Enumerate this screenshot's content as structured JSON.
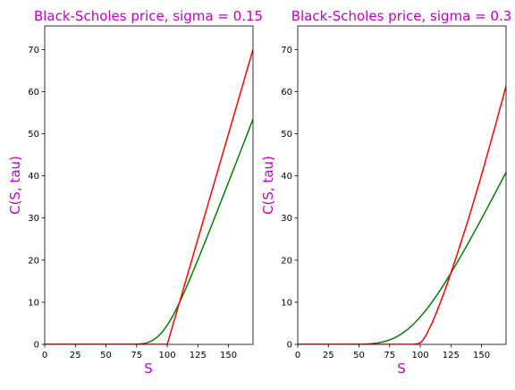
{
  "chart_data": [
    {
      "type": "line",
      "title": "Black-Scholes price, sigma = 0.15",
      "xlabel": "S",
      "ylabel": "C(S, tau)",
      "xlim": [
        0,
        170
      ],
      "ylim": [
        0,
        75.6
      ],
      "xticks": [
        0,
        25,
        50,
        75,
        100,
        125,
        150
      ],
      "yticks": [
        0,
        10,
        20,
        30,
        40,
        50,
        60,
        70
      ],
      "grid": false,
      "legend": "none",
      "series": [
        {
          "color": "#008000",
          "x": [
            0,
            40,
            60,
            70,
            75,
            78,
            80,
            82,
            84,
            86,
            88,
            90,
            92,
            94,
            96,
            98,
            100,
            102,
            104,
            106,
            108,
            110,
            112,
            114,
            116,
            118,
            120,
            125,
            130,
            135,
            140,
            145,
            150,
            155,
            160,
            165,
            170
          ],
          "y": [
            0,
            0,
            0,
            0.01,
            0.04,
            0.1,
            0.17,
            0.28,
            0.44,
            0.66,
            0.95,
            1.32,
            1.78,
            2.33,
            2.98,
            3.73,
            4.57,
            5.5,
            6.51,
            7.6,
            8.75,
            9.96,
            11.21,
            12.51,
            13.84,
            15.19,
            16.57,
            20.1,
            23.7,
            27.36,
            31.05,
            34.77,
            38.5,
            42.23,
            45.98,
            49.73,
            53.48
          ]
        },
        {
          "color": "#ff0000",
          "x": [
            0,
            100,
            170
          ],
          "y": [
            0,
            0,
            70
          ]
        }
      ]
    },
    {
      "type": "line",
      "title": "Black-Scholes price, sigma = 0.3",
      "xlabel": "S",
      "ylabel": "C(S, tau)",
      "xlim": [
        0,
        170
      ],
      "ylim": [
        0,
        75.6
      ],
      "xticks": [
        0,
        25,
        50,
        75,
        100,
        125,
        150
      ],
      "yticks": [
        0,
        10,
        20,
        30,
        40,
        50,
        60,
        70
      ],
      "grid": false,
      "legend": "none",
      "series": [
        {
          "color": "#008000",
          "x": [
            0,
            40,
            50,
            55,
            60,
            65,
            70,
            75,
            80,
            85,
            90,
            95,
            100,
            105,
            110,
            115,
            120,
            125,
            130,
            135,
            140,
            145,
            150,
            155,
            160,
            165,
            170
          ],
          "y": [
            0,
            0,
            0.02,
            0.06,
            0.15,
            0.32,
            0.61,
            1.05,
            1.69,
            2.55,
            3.64,
            4.96,
            6.5,
            8.26,
            10.2,
            12.31,
            14.56,
            16.92,
            19.38,
            21.91,
            24.51,
            27.15,
            29.84,
            32.56,
            35.3,
            38.06,
            40.84
          ]
        },
        {
          "color": "#ff0000",
          "x": [
            0,
            90,
            95,
            98,
            100,
            102,
            105,
            110,
            115,
            120,
            130,
            140,
            150,
            160,
            170
          ],
          "y": [
            0,
            0,
            0.03,
            0.15,
            0.4,
            0.95,
            2.3,
            5.3,
            8.9,
            12.7,
            21.3,
            30.4,
            40.2,
            50.6,
            61.3
          ]
        }
      ]
    }
  ]
}
